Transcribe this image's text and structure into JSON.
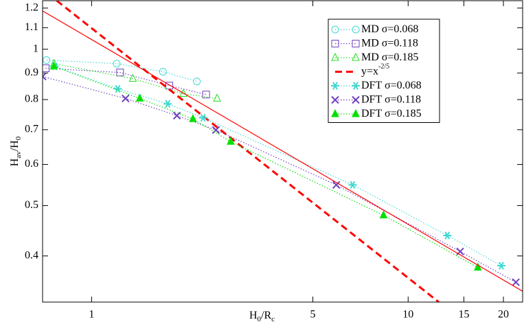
{
  "chart_data": {
    "type": "line",
    "xlabel": [
      "H",
      "0",
      "/R",
      "c"
    ],
    "ylabel": [
      "H",
      "av",
      "/H",
      "0"
    ],
    "xscale": "log",
    "yscale": "log",
    "xlim": [
      0.7,
      23
    ],
    "ylim": [
      0.326,
      1.24
    ],
    "xticks": [
      1,
      5,
      10,
      15,
      20
    ],
    "yticks": [
      0.4,
      0.5,
      0.6,
      0.7,
      0.8,
      0.9,
      1,
      1.1,
      1.2
    ],
    "legend": "upper right",
    "series": [
      {
        "name": [
          "MD σ=0.068"
        ],
        "color": "#40d8d0",
        "marker": "circle",
        "linestyle": "dotted",
        "x": [
          0.72,
          1.2,
          1.68,
          2.15
        ],
        "values": [
          0.953,
          0.938,
          0.905,
          0.867
        ]
      },
      {
        "name": [
          "MD σ=0.118"
        ],
        "color": "#7040c0",
        "marker": "square",
        "linestyle": "dotted",
        "x": [
          0.716,
          1.23,
          1.76,
          2.3
        ],
        "values": [
          0.919,
          0.902,
          0.851,
          0.818
        ]
      },
      {
        "name": [
          "MD σ=0.185"
        ],
        "color": "#20e020",
        "marker": "triangle",
        "linestyle": "dotted",
        "x": [
          0.76,
          1.35,
          1.95,
          2.49
        ],
        "values": [
          0.938,
          0.878,
          0.821,
          0.804
        ]
      },
      {
        "name": [
          "y=x",
          "-2/5"
        ],
        "color": "#ff0000",
        "marker": "none",
        "linestyle": "dashed",
        "x": [
          0.776,
          12.5
        ],
        "values": [
          1.24,
          0.326
        ]
      },
      {
        "name": [
          "DFT σ=0.068"
        ],
        "color": "#40d8d0",
        "marker": "asterisk",
        "linestyle": "dotted",
        "x": [
          0.764,
          1.21,
          1.74,
          2.25,
          6.68,
          13.3,
          19.7
        ],
        "values": [
          0.927,
          0.839,
          0.785,
          0.738,
          0.548,
          0.438,
          0.383
        ]
      },
      {
        "name": [
          "DFT σ=0.118"
        ],
        "color": "#7040c0",
        "marker": "x",
        "linestyle": "dotted",
        "x": [
          0.7,
          1.28,
          1.86,
          2.47,
          5.93,
          14.6,
          21.9
        ],
        "values": [
          0.886,
          0.804,
          0.745,
          0.699,
          0.548,
          0.408,
          0.356
        ]
      },
      {
        "name": [
          "DFT σ=0.185"
        ],
        "color": "#00e000",
        "marker": "filled-triangle",
        "linestyle": "dotted",
        "x": [
          0.76,
          1.42,
          2.09,
          2.75,
          8.36,
          16.6
        ],
        "values": [
          0.927,
          0.804,
          0.734,
          0.664,
          0.479,
          0.38
        ]
      },
      {
        "color": "#ff0000",
        "marker": "none",
        "linestyle": "solid",
        "x": [
          0.7,
          23
        ],
        "values": [
          1.185,
          0.342
        ]
      }
    ]
  }
}
